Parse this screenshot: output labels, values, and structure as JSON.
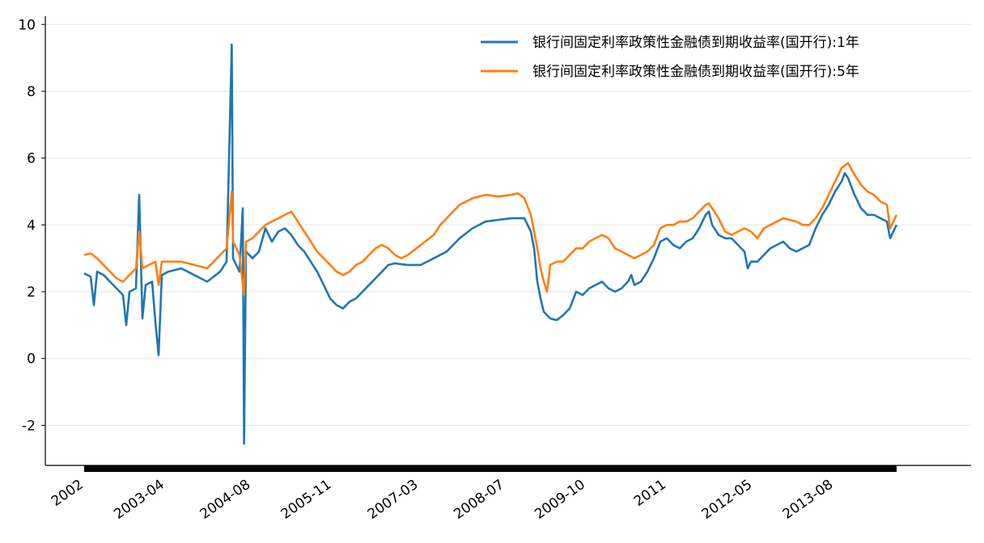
{
  "chart_data": {
    "type": "line",
    "title": "",
    "xlabel": "",
    "ylabel": "",
    "ylim": [
      -3.2,
      10.2
    ],
    "y_ticks": [
      "-2",
      "0",
      "2",
      "4",
      "6",
      "8",
      "10"
    ],
    "y_tick_values": [
      -2,
      0,
      2,
      4,
      6,
      8,
      10
    ],
    "x_tick_labels": [
      "2002",
      "2003-04",
      "2004-08",
      "2005-11",
      "2007-03",
      "2008-07",
      "2009-10",
      "2011",
      "2012-05",
      "2013-08"
    ],
    "x_tick_values": [
      2002.0,
      2003.25,
      2004.58,
      2005.83,
      2007.17,
      2008.5,
      2009.75,
      2011.0,
      2012.33,
      2013.58
    ],
    "xlim": [
      2001.4,
      2015.7
    ],
    "grid": "horizontal",
    "legend_position": "top-right",
    "series": [
      {
        "name": "银行间固定利率政策性金融债到期收益率(国开行):1年",
        "color": "#1f77b4",
        "points": [
          [
            2002.0,
            2.55
          ],
          [
            2002.1,
            2.45
          ],
          [
            2002.15,
            1.6
          ],
          [
            2002.2,
            2.6
          ],
          [
            2002.3,
            2.5
          ],
          [
            2002.4,
            2.3
          ],
          [
            2002.5,
            2.1
          ],
          [
            2002.6,
            1.9
          ],
          [
            2002.65,
            1.0
          ],
          [
            2002.7,
            2.0
          ],
          [
            2002.8,
            2.1
          ],
          [
            2002.85,
            4.9
          ],
          [
            2002.9,
            1.2
          ],
          [
            2002.95,
            2.2
          ],
          [
            2003.05,
            2.3
          ],
          [
            2003.1,
            1.1
          ],
          [
            2003.15,
            0.1
          ],
          [
            2003.2,
            2.5
          ],
          [
            2003.3,
            2.6
          ],
          [
            2003.5,
            2.7
          ],
          [
            2003.7,
            2.5
          ],
          [
            2003.9,
            2.3
          ],
          [
            2004.1,
            2.6
          ],
          [
            2004.2,
            2.9
          ],
          [
            2004.28,
            9.4
          ],
          [
            2004.3,
            3.0
          ],
          [
            2004.4,
            2.6
          ],
          [
            2004.45,
            4.5
          ],
          [
            2004.47,
            -2.55
          ],
          [
            2004.5,
            3.2
          ],
          [
            2004.6,
            3.0
          ],
          [
            2004.7,
            3.2
          ],
          [
            2004.8,
            3.9
          ],
          [
            2004.9,
            3.5
          ],
          [
            2005.0,
            3.8
          ],
          [
            2005.1,
            3.9
          ],
          [
            2005.2,
            3.7
          ],
          [
            2005.3,
            3.4
          ],
          [
            2005.4,
            3.2
          ],
          [
            2005.5,
            2.9
          ],
          [
            2005.6,
            2.6
          ],
          [
            2005.7,
            2.2
          ],
          [
            2005.8,
            1.8
          ],
          [
            2005.9,
            1.6
          ],
          [
            2006.0,
            1.5
          ],
          [
            2006.1,
            1.7
          ],
          [
            2006.2,
            1.8
          ],
          [
            2006.3,
            2.0
          ],
          [
            2006.4,
            2.2
          ],
          [
            2006.5,
            2.4
          ],
          [
            2006.6,
            2.6
          ],
          [
            2006.7,
            2.8
          ],
          [
            2006.8,
            2.85
          ],
          [
            2007.0,
            2.8
          ],
          [
            2007.2,
            2.8
          ],
          [
            2007.4,
            3.0
          ],
          [
            2007.6,
            3.2
          ],
          [
            2007.8,
            3.6
          ],
          [
            2008.0,
            3.9
          ],
          [
            2008.2,
            4.1
          ],
          [
            2008.4,
            4.15
          ],
          [
            2008.6,
            4.2
          ],
          [
            2008.8,
            4.2
          ],
          [
            2008.9,
            3.8
          ],
          [
            2008.95,
            3.3
          ],
          [
            2009.0,
            2.3
          ],
          [
            2009.05,
            1.8
          ],
          [
            2009.1,
            1.4
          ],
          [
            2009.2,
            1.2
          ],
          [
            2009.3,
            1.15
          ],
          [
            2009.4,
            1.3
          ],
          [
            2009.5,
            1.5
          ],
          [
            2009.6,
            2.0
          ],
          [
            2009.7,
            1.9
          ],
          [
            2009.8,
            2.1
          ],
          [
            2009.9,
            2.2
          ],
          [
            2010.0,
            2.3
          ],
          [
            2010.1,
            2.1
          ],
          [
            2010.2,
            2.0
          ],
          [
            2010.3,
            2.1
          ],
          [
            2010.4,
            2.3
          ],
          [
            2010.45,
            2.5
          ],
          [
            2010.5,
            2.2
          ],
          [
            2010.6,
            2.3
          ],
          [
            2010.7,
            2.6
          ],
          [
            2010.8,
            3.0
          ],
          [
            2010.9,
            3.5
          ],
          [
            2011.0,
            3.6
          ],
          [
            2011.1,
            3.4
          ],
          [
            2011.2,
            3.3
          ],
          [
            2011.3,
            3.5
          ],
          [
            2011.4,
            3.6
          ],
          [
            2011.5,
            3.9
          ],
          [
            2011.6,
            4.3
          ],
          [
            2011.65,
            4.4
          ],
          [
            2011.7,
            4.0
          ],
          [
            2011.8,
            3.7
          ],
          [
            2011.9,
            3.6
          ],
          [
            2012.0,
            3.6
          ],
          [
            2012.1,
            3.4
          ],
          [
            2012.2,
            3.2
          ],
          [
            2012.25,
            2.7
          ],
          [
            2012.3,
            2.9
          ],
          [
            2012.4,
            2.9
          ],
          [
            2012.5,
            3.1
          ],
          [
            2012.6,
            3.3
          ],
          [
            2012.7,
            3.4
          ],
          [
            2012.8,
            3.5
          ],
          [
            2012.9,
            3.3
          ],
          [
            2013.0,
            3.2
          ],
          [
            2013.1,
            3.3
          ],
          [
            2013.2,
            3.4
          ],
          [
            2013.3,
            3.9
          ],
          [
            2013.4,
            4.3
          ],
          [
            2013.5,
            4.6
          ],
          [
            2013.6,
            5.0
          ],
          [
            2013.7,
            5.3
          ],
          [
            2013.75,
            5.55
          ],
          [
            2013.8,
            5.4
          ],
          [
            2013.9,
            4.9
          ],
          [
            2014.0,
            4.5
          ],
          [
            2014.1,
            4.3
          ],
          [
            2014.2,
            4.3
          ],
          [
            2014.3,
            4.2
          ],
          [
            2014.4,
            4.1
          ],
          [
            2014.45,
            3.6
          ],
          [
            2014.5,
            3.8
          ],
          [
            2014.55,
            4.0
          ]
        ]
      },
      {
        "name": "银行间固定利率政策性金融债到期收益率(国开行):5年",
        "color": "#ff7f0e",
        "points": [
          [
            2002.0,
            3.1
          ],
          [
            2002.1,
            3.15
          ],
          [
            2002.2,
            3.0
          ],
          [
            2002.3,
            2.8
          ],
          [
            2002.4,
            2.6
          ],
          [
            2002.5,
            2.4
          ],
          [
            2002.6,
            2.3
          ],
          [
            2002.7,
            2.5
          ],
          [
            2002.8,
            2.7
          ],
          [
            2002.85,
            3.8
          ],
          [
            2002.9,
            2.7
          ],
          [
            2003.0,
            2.8
          ],
          [
            2003.1,
            2.9
          ],
          [
            2003.15,
            2.2
          ],
          [
            2003.2,
            2.9
          ],
          [
            2003.3,
            2.9
          ],
          [
            2003.5,
            2.9
          ],
          [
            2003.7,
            2.8
          ],
          [
            2003.9,
            2.7
          ],
          [
            2004.0,
            2.9
          ],
          [
            2004.1,
            3.1
          ],
          [
            2004.2,
            3.3
          ],
          [
            2004.28,
            5.0
          ],
          [
            2004.3,
            3.5
          ],
          [
            2004.4,
            3.1
          ],
          [
            2004.47,
            1.9
          ],
          [
            2004.5,
            3.5
          ],
          [
            2004.6,
            3.6
          ],
          [
            2004.7,
            3.8
          ],
          [
            2004.8,
            4.0
          ],
          [
            2004.9,
            4.1
          ],
          [
            2005.0,
            4.2
          ],
          [
            2005.1,
            4.3
          ],
          [
            2005.2,
            4.4
          ],
          [
            2005.3,
            4.1
          ],
          [
            2005.4,
            3.8
          ],
          [
            2005.5,
            3.5
          ],
          [
            2005.6,
            3.2
          ],
          [
            2005.7,
            3.0
          ],
          [
            2005.8,
            2.8
          ],
          [
            2005.9,
            2.6
          ],
          [
            2006.0,
            2.5
          ],
          [
            2006.1,
            2.6
          ],
          [
            2006.2,
            2.8
          ],
          [
            2006.3,
            2.9
          ],
          [
            2006.4,
            3.1
          ],
          [
            2006.5,
            3.3
          ],
          [
            2006.6,
            3.4
          ],
          [
            2006.7,
            3.3
          ],
          [
            2006.8,
            3.1
          ],
          [
            2006.9,
            3.0
          ],
          [
            2007.0,
            3.1
          ],
          [
            2007.2,
            3.4
          ],
          [
            2007.4,
            3.7
          ],
          [
            2007.5,
            4.0
          ],
          [
            2007.6,
            4.2
          ],
          [
            2007.7,
            4.4
          ],
          [
            2007.8,
            4.6
          ],
          [
            2007.9,
            4.7
          ],
          [
            2008.0,
            4.8
          ],
          [
            2008.2,
            4.9
          ],
          [
            2008.4,
            4.85
          ],
          [
            2008.6,
            4.9
          ],
          [
            2008.7,
            4.95
          ],
          [
            2008.8,
            4.8
          ],
          [
            2008.9,
            4.3
          ],
          [
            2009.0,
            3.3
          ],
          [
            2009.05,
            2.7
          ],
          [
            2009.1,
            2.3
          ],
          [
            2009.15,
            2.0
          ],
          [
            2009.2,
            2.8
          ],
          [
            2009.3,
            2.9
          ],
          [
            2009.4,
            2.9
          ],
          [
            2009.5,
            3.1
          ],
          [
            2009.6,
            3.3
          ],
          [
            2009.7,
            3.3
          ],
          [
            2009.8,
            3.5
          ],
          [
            2009.9,
            3.6
          ],
          [
            2010.0,
            3.7
          ],
          [
            2010.1,
            3.6
          ],
          [
            2010.2,
            3.3
          ],
          [
            2010.3,
            3.2
          ],
          [
            2010.4,
            3.1
          ],
          [
            2010.5,
            3.0
          ],
          [
            2010.6,
            3.1
          ],
          [
            2010.7,
            3.2
          ],
          [
            2010.8,
            3.4
          ],
          [
            2010.9,
            3.9
          ],
          [
            2011.0,
            4.0
          ],
          [
            2011.1,
            4.0
          ],
          [
            2011.2,
            4.1
          ],
          [
            2011.3,
            4.1
          ],
          [
            2011.4,
            4.2
          ],
          [
            2011.5,
            4.4
          ],
          [
            2011.6,
            4.6
          ],
          [
            2011.65,
            4.65
          ],
          [
            2011.7,
            4.5
          ],
          [
            2011.8,
            4.2
          ],
          [
            2011.9,
            3.8
          ],
          [
            2012.0,
            3.7
          ],
          [
            2012.1,
            3.8
          ],
          [
            2012.2,
            3.9
          ],
          [
            2012.3,
            3.8
          ],
          [
            2012.4,
            3.6
          ],
          [
            2012.5,
            3.9
          ],
          [
            2012.6,
            4.0
          ],
          [
            2012.7,
            4.1
          ],
          [
            2012.8,
            4.2
          ],
          [
            2012.9,
            4.15
          ],
          [
            2013.0,
            4.1
          ],
          [
            2013.1,
            4.0
          ],
          [
            2013.2,
            4.0
          ],
          [
            2013.3,
            4.2
          ],
          [
            2013.4,
            4.5
          ],
          [
            2013.5,
            4.9
          ],
          [
            2013.6,
            5.3
          ],
          [
            2013.7,
            5.7
          ],
          [
            2013.8,
            5.85
          ],
          [
            2013.9,
            5.5
          ],
          [
            2014.0,
            5.2
          ],
          [
            2014.1,
            5.0
          ],
          [
            2014.2,
            4.9
          ],
          [
            2014.3,
            4.7
          ],
          [
            2014.4,
            4.6
          ],
          [
            2014.45,
            3.9
          ],
          [
            2014.5,
            4.1
          ],
          [
            2014.55,
            4.3
          ]
        ]
      }
    ]
  }
}
